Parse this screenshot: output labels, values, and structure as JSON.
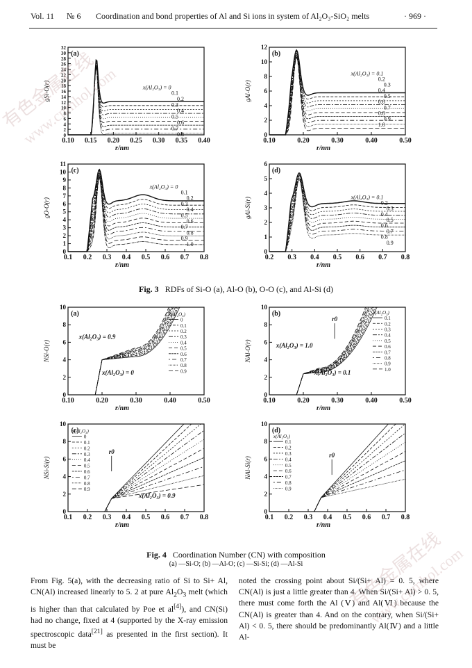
{
  "header": {
    "vol": "Vol. 11",
    "num": "№ 6",
    "title": "Coordination and bond properties of Al and Si ions in system of Al₂O₃-SiO₂ melts",
    "page": "· 969 ·"
  },
  "fig3": {
    "label": "Fig. 3",
    "caption": "RDFs of Si-O (a), Al-O (b), O-O (c), and Al-Si (d)",
    "panels": [
      {
        "id": "a",
        "ylabel": "gSi-O(r)",
        "xlabel": "r/nm",
        "xticks": [
          "0.10",
          "0.15",
          "0.20",
          "0.25",
          "0.30",
          "0.35",
          "0.40"
        ],
        "yticks": [
          "0",
          "2",
          "4",
          "6",
          "8",
          "10",
          "12",
          "14",
          "16",
          "18",
          "20",
          "22",
          "24",
          "26",
          "28",
          "30",
          "32"
        ],
        "legend_first": "x(Al₂O₃) = 0",
        "legend": [
          "0.1",
          "0.2",
          "0.3",
          "0.4",
          "0.5",
          "0.6",
          "0.7",
          "0.8"
        ]
      },
      {
        "id": "b",
        "ylabel": "gAl-O(r)",
        "xlabel": "r/nm",
        "xticks": [
          "0.10",
          "0.20",
          "0.30",
          "0.40",
          "0.50"
        ],
        "yticks": [
          "0",
          "2",
          "4",
          "6",
          "8",
          "10",
          "12"
        ],
        "legend_first": "x(Al₂O₃) = 0.1",
        "legend": [
          "0.2",
          "0.3",
          "0.4",
          "0.5",
          "0.6",
          "0.7",
          "0.8",
          "0.9",
          "1.0"
        ]
      },
      {
        "id": "c",
        "ylabel": "gO-O(r)",
        "xlabel": "r/nm",
        "xticks": [
          "0.1",
          "0.2",
          "0.3",
          "0.4",
          "0.5",
          "0.6",
          "0.7",
          "0.8"
        ],
        "yticks": [
          "0",
          "1",
          "2",
          "3",
          "4",
          "5",
          "6",
          "7",
          "8",
          "9",
          "10",
          "11"
        ],
        "legend_first": "x(Al₂O₃) = 0",
        "legend": [
          "0.1",
          "0.2",
          "0.3",
          "0.4",
          "0.5",
          "0.6",
          "0.7",
          "0.8",
          "0.9",
          "1.0"
        ]
      },
      {
        "id": "d",
        "ylabel": "gAl-Si(r)",
        "xlabel": "r/nm",
        "xticks": [
          "0.2",
          "0.3",
          "0.4",
          "0.5",
          "0.6",
          "0.7",
          "0.8"
        ],
        "yticks": [
          "0",
          "1",
          "2",
          "3",
          "4",
          "5",
          "6"
        ],
        "legend_first": "x(Al₂O₃) = 0.1",
        "legend": [
          "0.2",
          "0.3",
          "0.4",
          "0.5",
          "0.6",
          "0.7",
          "0.8",
          "0.9"
        ]
      }
    ]
  },
  "fig4": {
    "label": "Fig. 4",
    "caption": "Coordination Number (CN) with composition",
    "subcaption": "(a) —Si-O; (b) —Al-O; (c) —Si-Si; (d) —Al-Si",
    "panels": [
      {
        "id": "a",
        "ylabel": "NSi-O(r)",
        "xlabel": "r/nm",
        "xticks": [
          "0.10",
          "0.20",
          "0.30",
          "0.40",
          "0.50"
        ],
        "yticks": [
          "0",
          "2",
          "4",
          "6",
          "8",
          "10"
        ],
        "legend_title": "x(Al₂O₃)",
        "legend": [
          "0",
          "0.1",
          "0.2",
          "0.3",
          "0.4",
          "0.5",
          "0.6",
          "0.7",
          "0.8",
          "0.9"
        ],
        "ann1": "x(Al₂O₃) = 0.9",
        "ann2": "x(Al₂O₃) = 0"
      },
      {
        "id": "b",
        "ylabel": "NAl-O(r)",
        "xlabel": "r/nm",
        "xticks": [
          "0.10",
          "0.20",
          "0.30",
          "0.40",
          "0.50"
        ],
        "yticks": [
          "0",
          "2",
          "4",
          "6",
          "8",
          "10"
        ],
        "legend_title": "x(Al₂O₃)",
        "legend": [
          "0.1",
          "0.2",
          "0.3",
          "0.4",
          "0.5",
          "0.6",
          "0.7",
          "0.8",
          "0.9",
          "1.0"
        ],
        "ann1": "x(Al₂O₃) = 1.0",
        "ann2": "x(Al₂O₃) = 0.1",
        "r0": "r0"
      },
      {
        "id": "c",
        "ylabel": "NSi-Si(r)",
        "xlabel": "r/nm",
        "xticks": [
          "0.1",
          "0.2",
          "0.3",
          "0.4",
          "0.5",
          "0.6",
          "0.7",
          "0.8"
        ],
        "yticks": [
          "0",
          "2",
          "4",
          "6",
          "8",
          "10"
        ],
        "legend_title": "x(Al₂O₃)",
        "legend": [
          "0",
          "0.1",
          "0.2",
          "0.3",
          "0.4",
          "0.5",
          "0.6",
          "0.7",
          "0.8",
          "0.9"
        ],
        "ann1": "x(Al₂O₃) = 0.9",
        "r0": "r0"
      },
      {
        "id": "d",
        "ylabel": "NAl-Si(r)",
        "xlabel": "r/nm",
        "xticks": [
          "0.1",
          "0.2",
          "0.3",
          "0.4",
          "0.5",
          "0.6",
          "0.7",
          "0.8"
        ],
        "yticks": [
          "0",
          "2",
          "4",
          "6",
          "8",
          "10"
        ],
        "legend_title": "x(Al₂O₃)",
        "legend": [
          "0.1",
          "0.2",
          "0.3",
          "0.4",
          "0.5",
          "0.6",
          "0.7",
          "0.8",
          "0.9"
        ],
        "r0": "r0"
      }
    ]
  },
  "body": {
    "left_html": "From Fig. 5(a), with the decreasing ratio of Si to Si+ Al, CN(Al) increased linearly to 5. 2 at pure Al<sub>2</sub>O<sub>3</sub> melt (which is higher than that calculated by Poe et al<sup>[4]</sup>), and CN(Si) had no change, fixed at 4 (supported by the X-ray emission spectroscopic data<sup>[21]</sup> as presented in the first section). It must be",
    "right_html": "noted the crossing point about Si/(Si+ Al) = 0. 5, where CN(Al) is just a little greater than 4. When Si/(Si+ Al) &gt; 0. 5, there must come forth the Al (Ⅴ) and Al(Ⅵ) because the CN(Al) is greater than 4. And on the contrary, when Si/(Si+ Al) &lt; 0. 5, there should be predominantly Al(Ⅳ) and a little Al-"
  },
  "watermark": [
    "有色金属在线",
    "www.cnmhol.com"
  ]
}
